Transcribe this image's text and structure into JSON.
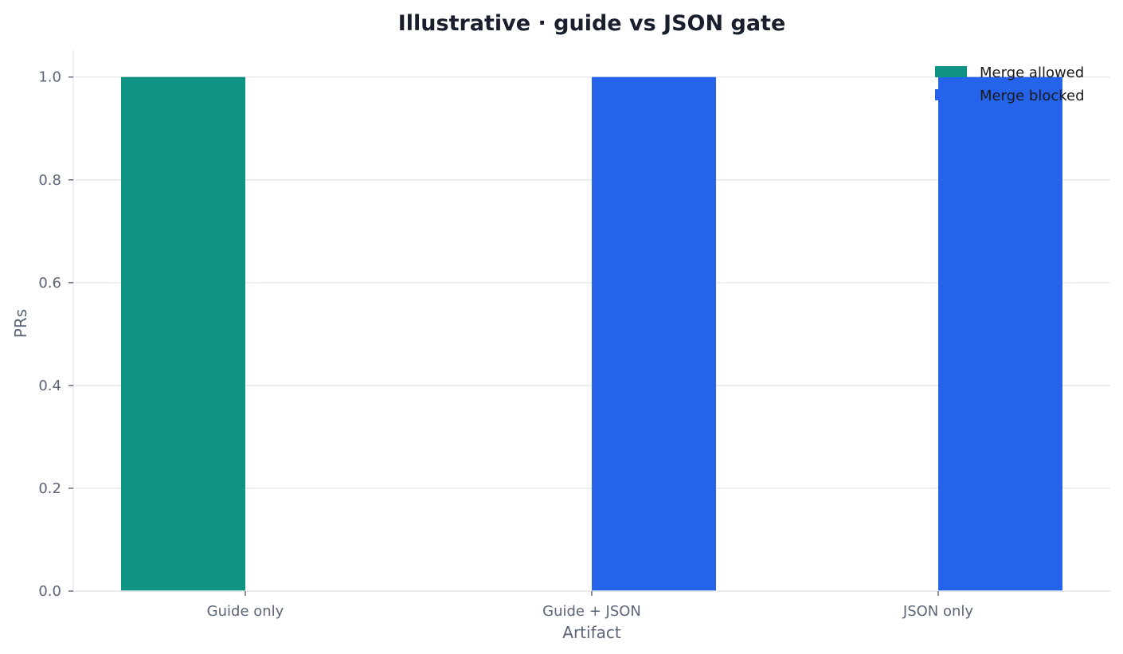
{
  "chart_data": {
    "type": "bar",
    "title": "Illustrative · guide vs JSON gate",
    "xlabel": "Artifact",
    "ylabel": "PRs",
    "categories": [
      "Guide only",
      "Guide + JSON",
      "JSON only"
    ],
    "series": [
      {
        "name": "Merge allowed",
        "color": "#0e9384",
        "values": [
          1,
          0,
          0
        ]
      },
      {
        "name": "Merge blocked",
        "color": "#2563eb",
        "values": [
          0,
          1,
          1
        ]
      }
    ],
    "ylim": [
      0,
      1.05
    ],
    "yticks": [
      "0.0",
      "0.2",
      "0.4",
      "0.6",
      "0.8",
      "1.0"
    ],
    "grid": "horizontal",
    "legend_position": "top-right"
  }
}
